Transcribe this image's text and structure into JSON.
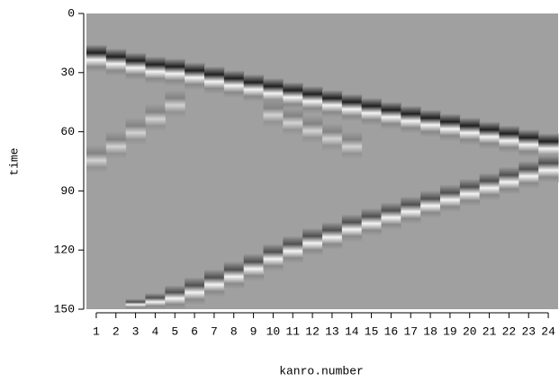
{
  "chart_data": {
    "type": "seismic-image",
    "x_label": "kanro.number",
    "y_label": "time",
    "categories": [
      "1",
      "2",
      "3",
      "4",
      "5",
      "6",
      "7",
      "8",
      "9",
      "10",
      "11",
      "12",
      "13",
      "14",
      "15",
      "16",
      "17",
      "18",
      "19",
      "20",
      "21",
      "22",
      "23",
      "24"
    ],
    "ylim": [
      0,
      150
    ],
    "yticks": [
      0,
      30,
      60,
      90,
      120,
      150
    ],
    "y_inverted": true,
    "background": "#a0a0a0",
    "series": [
      {
        "color": "#202020",
        "values": [
          20,
          22,
          24,
          26,
          27,
          29,
          31,
          33,
          35,
          37,
          39,
          41,
          43,
          45,
          47,
          49,
          51,
          53,
          55,
          57,
          59,
          61,
          63,
          65
        ]
      },
      {
        "color": "#707070",
        "values": [
          71,
          64,
          57,
          50,
          43,
          null,
          null,
          null,
          null,
          48,
          52,
          56,
          60,
          64,
          null,
          null,
          null,
          null,
          null,
          null,
          null,
          null,
          null,
          null
        ]
      },
      {
        "color": "#505050",
        "values": [
          null,
          null,
          149,
          146,
          142,
          138,
          134,
          130,
          126,
          121,
          117,
          113,
          110,
          106,
          103,
          100,
          97,
          94,
          91,
          88,
          85,
          82,
          79,
          76
        ]
      }
    ]
  }
}
